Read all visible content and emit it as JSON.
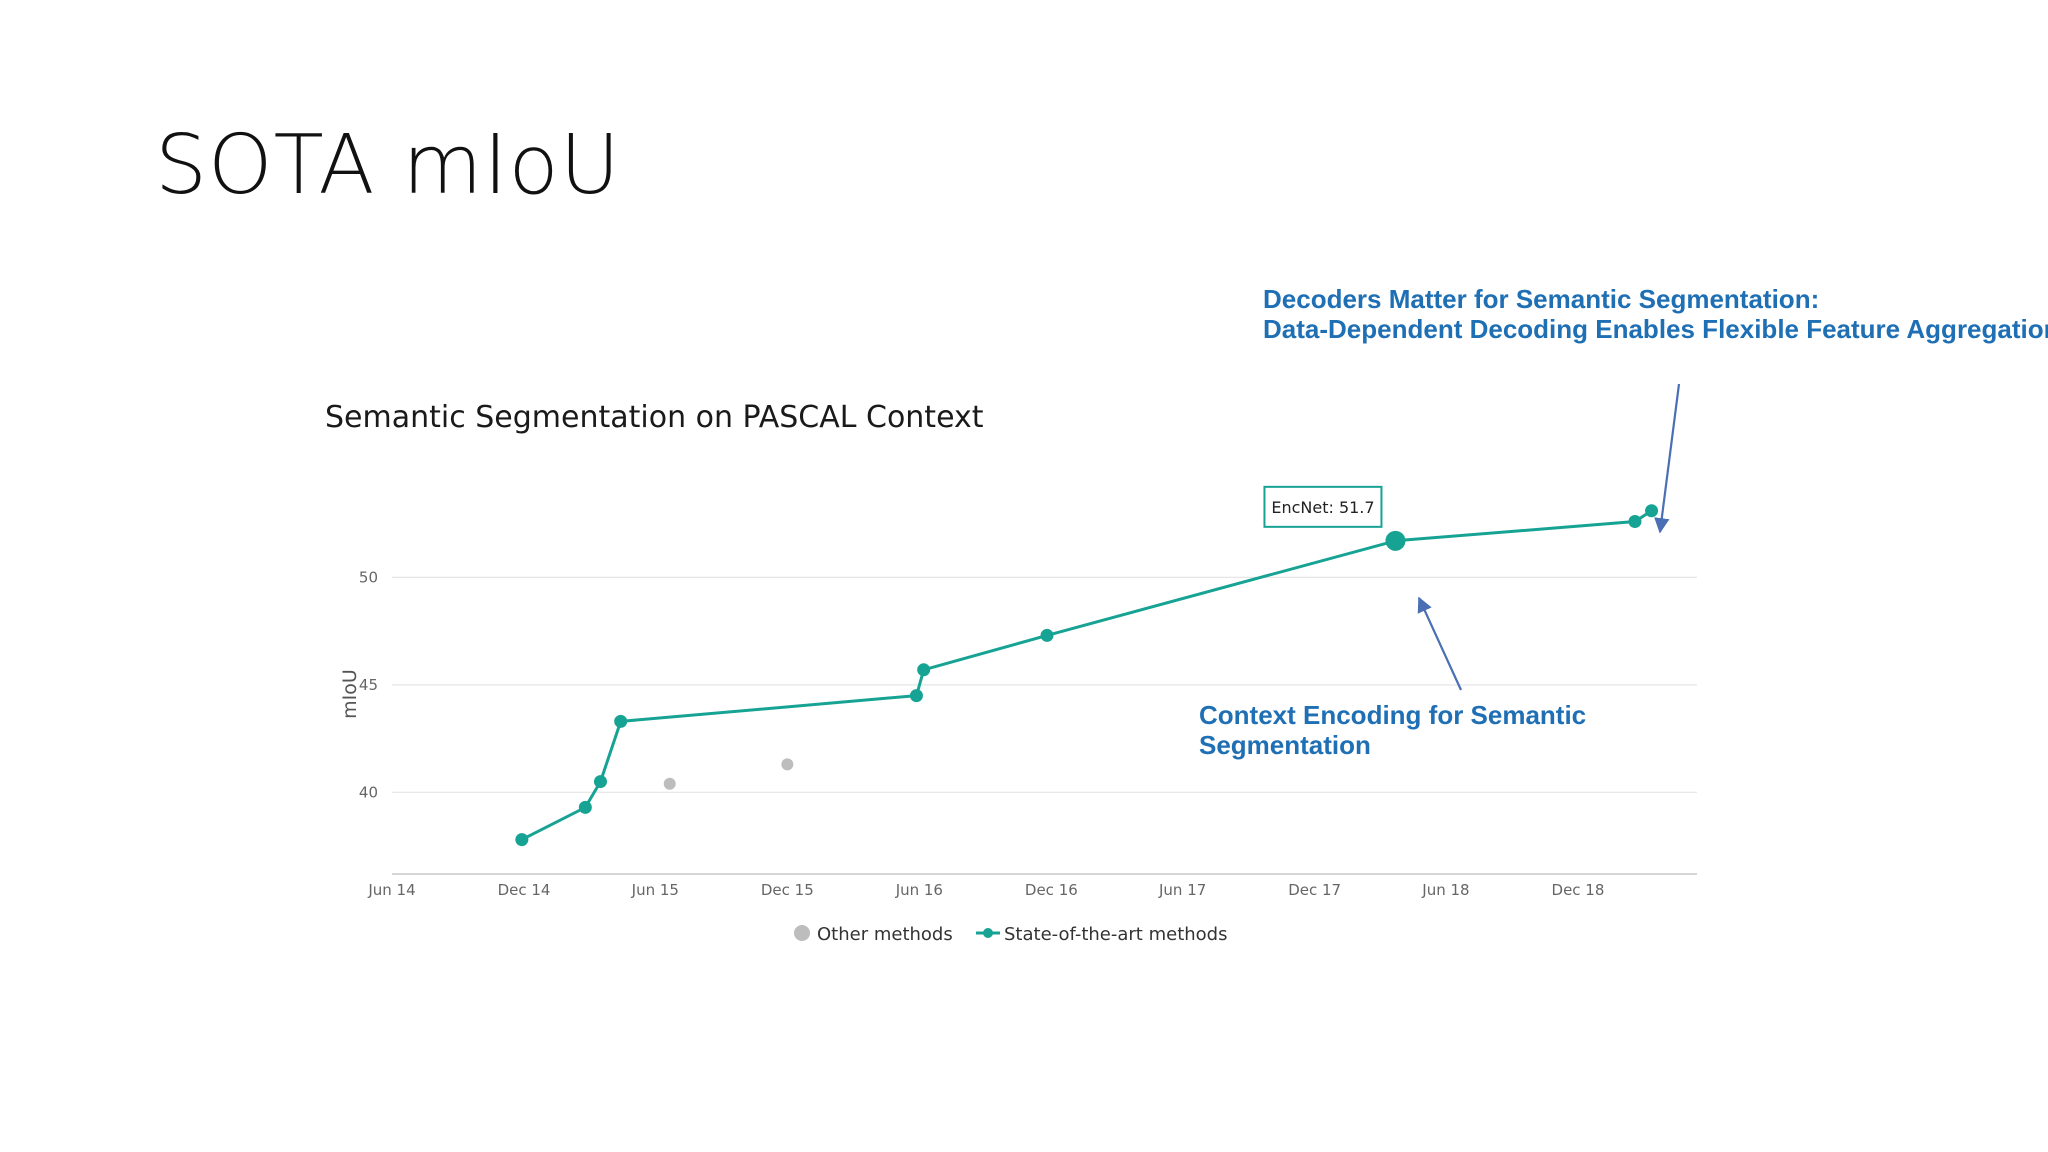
{
  "slide": {
    "title": "SOTA mIoU"
  },
  "annotations": {
    "decoders_line1": "Decoders Matter for Semantic Segmentation:",
    "decoders_line2": "Data-Dependent Decoding Enables Flexible Feature Aggregation",
    "encnet_line1": "Context Encoding for Semantic",
    "encnet_line2": "Segmentation"
  },
  "colors": {
    "sota": "#16a394",
    "other": "#bdbdbd",
    "annotation": "#1f6fb5",
    "arrow": "#4a6fb5"
  },
  "chart_data": {
    "type": "line",
    "title": "Semantic Segmentation on PASCAL Context",
    "xlabel": "",
    "ylabel": "mIoU",
    "xticks": [
      "Jun 14",
      "Dec 14",
      "Jun 15",
      "Dec 15",
      "Jun 16",
      "Dec 16",
      "Jun 17",
      "Dec 17",
      "Jun 18",
      "Dec 18"
    ],
    "xlim": [
      "2014-06-01",
      "2019-05-15"
    ],
    "yticks": [
      40,
      45,
      50
    ],
    "ylim": [
      36.2,
      53.6
    ],
    "grid": true,
    "legend_position": "bottom-center",
    "tooltip": {
      "label": "EncNet: 51.7"
    },
    "series": [
      {
        "name": "Other methods",
        "kind": "scatter",
        "points": [
          {
            "x": "2015-06-21",
            "y": 40.4
          },
          {
            "x": "2015-12-01",
            "y": 41.3
          }
        ]
      },
      {
        "name": "State-of-the-art methods",
        "kind": "line",
        "points": [
          {
            "x": "2014-11-28",
            "y": 37.8
          },
          {
            "x": "2015-02-24",
            "y": 39.3
          },
          {
            "x": "2015-03-17",
            "y": 40.5
          },
          {
            "x": "2015-04-14",
            "y": 43.3
          },
          {
            "x": "2016-05-28",
            "y": 44.5
          },
          {
            "x": "2016-06-07",
            "y": 45.7
          },
          {
            "x": "2016-11-25",
            "y": 47.3
          },
          {
            "x": "2018-03-23",
            "y": 51.7,
            "highlight": true
          },
          {
            "x": "2019-02-18",
            "y": 52.6
          },
          {
            "x": "2019-03-13",
            "y": 53.1
          }
        ]
      }
    ]
  }
}
